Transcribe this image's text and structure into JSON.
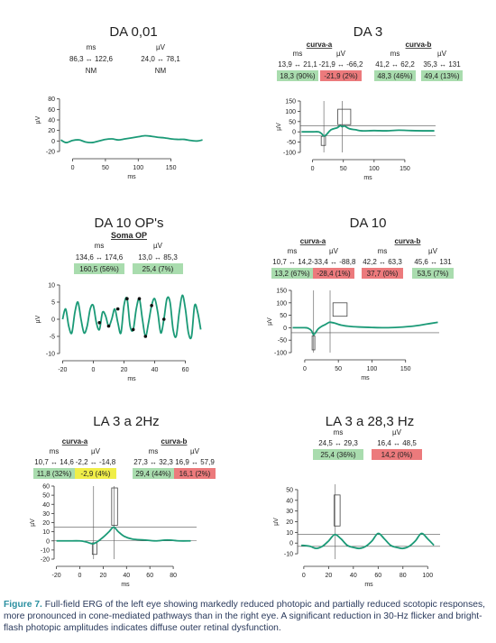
{
  "colors": {
    "trace": "#1b9a77",
    "green": "#a9dcae",
    "red": "#ec7a7c",
    "yellow": "#f0ee48",
    "axis": "#333333",
    "caption_label": "#2a8fa0"
  },
  "panels": [
    {
      "id": "da001",
      "title": "DA 0,01",
      "columns": [
        {
          "heading": "ms",
          "range": "86,3 ↔ 122,6",
          "status": "NM"
        },
        {
          "heading": "µV",
          "range": "24,0 ↔ 78,1",
          "status": "NM"
        }
      ],
      "chart_data": {
        "type": "line",
        "ylabel": "µV",
        "xlabel": "ms",
        "xticks": [
          "0",
          "50",
          "100",
          "150"
        ],
        "yticks": [
          "80",
          "60",
          "40",
          "20",
          "0",
          "-20"
        ],
        "xlim": [
          -20,
          200
        ],
        "ylim": [
          -20,
          100
        ],
        "x": [
          -18,
          -10,
          0,
          10,
          20,
          30,
          40,
          50,
          60,
          70,
          80,
          90,
          100,
          110,
          120,
          130,
          140,
          150,
          160,
          170,
          180,
          190,
          198
        ],
        "y": [
          2,
          -3,
          1,
          2,
          -2,
          -3,
          0,
          3,
          4,
          2,
          4,
          6,
          8,
          10,
          9,
          7,
          6,
          4,
          3,
          3,
          1,
          0,
          2
        ]
      }
    },
    {
      "id": "da3",
      "title": "DA 3",
      "groups": [
        {
          "label": "curva-a"
        },
        {
          "label": "curva-b"
        }
      ],
      "columns": [
        {
          "heading": "ms",
          "range": "13,9 ↔ 21,1",
          "value": "18,3 (90%)",
          "color": "green"
        },
        {
          "heading": "µV",
          "range": "-21,9 ↔ -66,2",
          "value": "-21,9 (2%)",
          "color": "red"
        },
        {
          "heading": "ms",
          "range": "41,2 ↔ 62,2",
          "value": "48,3 (46%)",
          "color": "green"
        },
        {
          "heading": "µV",
          "range": "35,3 ↔ 131",
          "value": "49,4 (13%)",
          "color": "green"
        }
      ],
      "chart_data": {
        "type": "line",
        "ylabel": "µV",
        "xlabel": "ms",
        "xticks": [
          "0",
          "50",
          "100",
          "150"
        ],
        "yticks": [
          "150",
          "100",
          "50",
          "0",
          "-50",
          "-100"
        ],
        "xlim": [
          -20,
          200
        ],
        "ylim": [
          -100,
          150
        ],
        "x": [
          -18,
          -10,
          0,
          10,
          15,
          18,
          22,
          30,
          40,
          45,
          48,
          52,
          60,
          70,
          80,
          100,
          120,
          140,
          160,
          180,
          198
        ],
        "y": [
          0,
          0,
          0,
          0,
          -10,
          -20,
          -15,
          10,
          20,
          30,
          25,
          28,
          15,
          10,
          5,
          6,
          5,
          8,
          6,
          5,
          5
        ],
        "hlines": [
          30,
          -20
        ],
        "vlines": [
          18.3,
          48.3
        ],
        "boxes": [
          {
            "x0": 14,
            "x1": 21,
            "y0": -66,
            "y1": -22
          },
          {
            "x0": 41,
            "x1": 62,
            "y0": 35,
            "y1": 110
          }
        ]
      }
    },
    {
      "id": "da10ops",
      "title": "DA 10 OP's",
      "subtitle": "Soma OP",
      "columns": [
        {
          "heading": "ms",
          "range": "134,6 ↔ 174,6",
          "value": "160,5 (56%)",
          "color": "green"
        },
        {
          "heading": "µV",
          "range": "13,0 ↔ 85,3",
          "value": "25,4 (7%)",
          "color": "green"
        }
      ],
      "chart_data": {
        "type": "line",
        "ylabel": "µV",
        "xlabel": "ms",
        "xticks": [
          "-20",
          "0",
          "20",
          "40",
          "60"
        ],
        "yticks": [
          "10",
          "5",
          "0",
          "-5",
          "-10"
        ],
        "xlim": [
          -22,
          72
        ],
        "ylim": [
          -10,
          10
        ],
        "x": [
          -20,
          -18,
          -16,
          -14,
          -12,
          -10,
          -8,
          -6,
          -4,
          -2,
          0,
          2,
          4,
          6,
          8,
          10,
          12,
          14,
          16,
          18,
          20,
          22,
          24,
          26,
          28,
          30,
          32,
          34,
          36,
          38,
          40,
          42,
          44,
          46,
          48,
          50,
          52,
          54,
          56,
          58,
          60,
          62,
          64,
          66,
          68,
          70
        ],
        "y": [
          0,
          3,
          -2,
          -4,
          2,
          5,
          0,
          -4,
          -2,
          3,
          4,
          -1,
          -3,
          2,
          1,
          -2,
          0,
          3,
          -1,
          -4,
          4,
          6,
          -2,
          -3,
          3,
          6,
          0,
          -5,
          -1,
          4,
          6,
          2,
          -4,
          0,
          6,
          5,
          -3,
          -5,
          2,
          7,
          3,
          -4,
          -5,
          4,
          2,
          -3
        ],
        "peaks": [
          [
            4,
            -1
          ],
          [
            10,
            -2
          ],
          [
            16,
            3
          ],
          [
            22,
            6
          ],
          [
            26,
            -3
          ],
          [
            30,
            6
          ],
          [
            34,
            -5
          ],
          [
            38,
            4
          ],
          [
            46,
            0
          ]
        ]
      }
    },
    {
      "id": "da10",
      "title": "DA 10",
      "groups": [
        {
          "label": "curva-a"
        },
        {
          "label": "curva-b"
        }
      ],
      "columns": [
        {
          "heading": "ms",
          "range": "10,7 ↔ 14,2",
          "value": "13,2 (67%)",
          "color": "green"
        },
        {
          "heading": "µV",
          "range": "-33,4 ↔ -88,8",
          "value": "-28,4 (1%)",
          "color": "red"
        },
        {
          "heading": "ms",
          "range": "42,2 ↔ 63,3",
          "value": "37,7 (0%)",
          "color": "red"
        },
        {
          "heading": "µV",
          "range": "45,6 ↔ 131",
          "value": "53,5 (7%)",
          "color": "green"
        }
      ],
      "chart_data": {
        "type": "line",
        "ylabel": "µV",
        "xlabel": "ms",
        "xticks": [
          "0",
          "50",
          "100",
          "150"
        ],
        "yticks": [
          "150",
          "100",
          "50",
          "0",
          "-50",
          "-100"
        ],
        "xlim": [
          -20,
          200
        ],
        "ylim": [
          -100,
          150
        ],
        "x": [
          -18,
          -10,
          0,
          5,
          10,
          13,
          16,
          20,
          25,
          30,
          35,
          38,
          45,
          55,
          65,
          80,
          100,
          120,
          140,
          160,
          180,
          198
        ],
        "y": [
          0,
          0,
          0,
          -2,
          -12,
          -28,
          -20,
          -5,
          5,
          12,
          20,
          22,
          18,
          10,
          6,
          3,
          1,
          0,
          2,
          6,
          14,
          22
        ],
        "hlines": [
          -20
        ],
        "vlines": [
          13.2,
          37.7
        ],
        "boxes": [
          {
            "x0": 11,
            "x1": 14,
            "y0": -89,
            "y1": -33
          },
          {
            "x0": 42,
            "x1": 63,
            "y0": 46,
            "y1": 100
          }
        ]
      }
    },
    {
      "id": "la3_2hz",
      "title": "LA 3 a 2Hz",
      "groups": [
        {
          "label": "curva-a"
        },
        {
          "label": "curva-b"
        }
      ],
      "columns": [
        {
          "heading": "ms",
          "range": "10,7 ↔ 14,6",
          "value": "11,8 (32%)",
          "color": "green"
        },
        {
          "heading": "µV",
          "range": "-2,2 ↔ -14,8",
          "value": "-2,9 (4%)",
          "color": "yellow"
        },
        {
          "heading": "ms",
          "range": "27,3 ↔ 32,3",
          "value": "29,4 (44%)",
          "color": "green"
        },
        {
          "heading": "µV",
          "range": "16,9 ↔ 57,9",
          "value": "16,1 (2%)",
          "color": "red"
        }
      ],
      "chart_data": {
        "type": "line",
        "ylabel": "µV",
        "xlabel": "ms",
        "xticks": [
          "-20",
          "0",
          "20",
          "40",
          "60",
          "80"
        ],
        "yticks": [
          "60",
          "50",
          "40",
          "30",
          "20",
          "10",
          "0",
          "-10",
          "-20"
        ],
        "xlim": [
          -22,
          100
        ],
        "ylim": [
          -20,
          60
        ],
        "x": [
          -20,
          -10,
          0,
          5,
          10,
          12,
          15,
          20,
          25,
          29,
          33,
          38,
          45,
          55,
          65,
          75,
          85,
          95
        ],
        "y": [
          0,
          0,
          0,
          -1,
          -3,
          -3,
          -1,
          4,
          10,
          15,
          10,
          5,
          2,
          1,
          0,
          1,
          0,
          0
        ],
        "hlines": [
          15,
          0
        ],
        "vlines": [
          11.8,
          29.4
        ],
        "boxes": [
          {
            "x0": 10.7,
            "x1": 14.6,
            "y0": -14.8,
            "y1": -2.2
          },
          {
            "x0": 27.3,
            "x1": 32.3,
            "y0": 17,
            "y1": 58
          }
        ]
      }
    },
    {
      "id": "la3_28hz",
      "title": "LA 3 a 28,3 Hz",
      "columns": [
        {
          "heading": "ms",
          "range": "24,5 ↔ 29,3",
          "value": "25,4 (36%)",
          "color": "green"
        },
        {
          "heading": "µV",
          "range": "16,4 ↔ 48,5",
          "value": "14,2 (0%)",
          "color": "red"
        }
      ],
      "chart_data": {
        "type": "line",
        "ylabel": "µV",
        "xlabel": "ms",
        "xticks": [
          "0",
          "20",
          "40",
          "60",
          "80",
          "100"
        ],
        "yticks": [
          "50",
          "40",
          "30",
          "20",
          "10",
          "0",
          "-10"
        ],
        "xlim": [
          -5,
          110
        ],
        "ylim": [
          -15,
          55
        ],
        "x": [
          -2,
          5,
          10,
          15,
          20,
          25,
          30,
          35,
          40,
          45,
          50,
          55,
          60,
          65,
          70,
          75,
          80,
          85,
          90,
          95,
          100,
          105
        ],
        "y": [
          -2,
          -3,
          -5,
          -3,
          2,
          8,
          4,
          -2,
          -4,
          -5,
          -3,
          2,
          9,
          4,
          -2,
          -4,
          -5,
          -3,
          2,
          9,
          4,
          -2
        ],
        "hlines": [
          8,
          -3
        ],
        "vlines": [
          25.4
        ],
        "boxes": [
          {
            "x0": 24.5,
            "x1": 29.3,
            "y0": 16,
            "y1": 45
          }
        ]
      }
    }
  ],
  "caption": {
    "label": "Figure 7.",
    "text": "Full-field ERG of the left eye showing markedly reduced photopic and partially reduced scotopic responses, more pronounced in cone-mediated pathways than in the right eye. A significant reduction in 30-Hz flicker and bright-flash photopic amplitudes indicates diffuse outer retinal dysfunction."
  }
}
